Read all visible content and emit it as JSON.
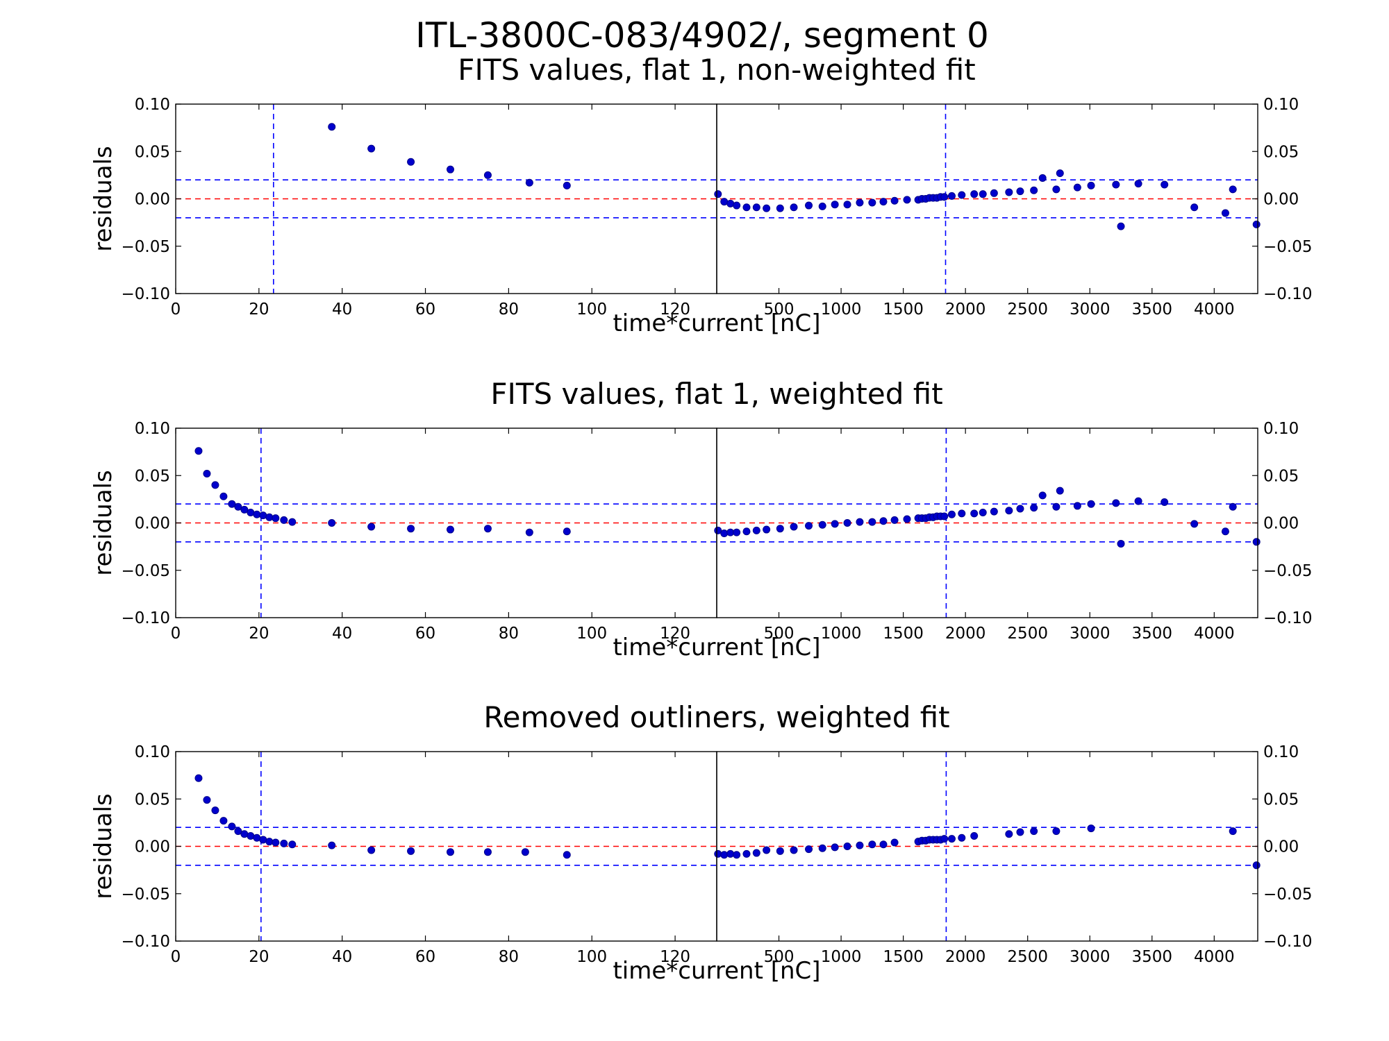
{
  "figure": {
    "title": "ITL-3800C-083/4902/, segment 0"
  },
  "colors": {
    "points": "#0000cc",
    "point_edge": "#00008b",
    "zero_line": "#ff0000",
    "threshold_lines": "#0000ff",
    "axes": "#000000"
  },
  "chart_data": [
    {
      "type": "scatter",
      "title": "FITS values, flat 1, non-weighted fit",
      "xlabel": "time*current [nC]",
      "ylabel": "residuals",
      "ylim": [
        -0.1,
        0.1
      ],
      "yticks": [
        "0.10",
        "0.05",
        "0.00",
        "−0.05",
        "−0.10"
      ],
      "y_values": [
        0.1,
        0.05,
        0.0,
        -0.05,
        -0.1
      ],
      "hlines": {
        "zero": 0.0,
        "thresholds": [
          0.02,
          -0.02
        ]
      },
      "left": {
        "xlim": [
          0,
          130
        ],
        "xticks": [
          0,
          20,
          40,
          60,
          80,
          100,
          120
        ],
        "vline": 23.5,
        "points": [
          [
            37.5,
            0.076
          ],
          [
            47,
            0.053
          ],
          [
            56.5,
            0.039
          ],
          [
            66,
            0.031
          ],
          [
            75,
            0.025
          ],
          [
            85,
            0.017
          ],
          [
            94,
            0.014
          ]
        ]
      },
      "right": {
        "xlim": [
          0,
          4350
        ],
        "xticks": [
          500,
          1000,
          1500,
          2000,
          2500,
          3000,
          3500,
          4000
        ],
        "vline": 1840,
        "points": [
          [
            10,
            0.005
          ],
          [
            60,
            -0.003
          ],
          [
            110,
            -0.005
          ],
          [
            160,
            -0.007
          ],
          [
            240,
            -0.009
          ],
          [
            320,
            -0.009
          ],
          [
            400,
            -0.01
          ],
          [
            510,
            -0.01
          ],
          [
            620,
            -0.009
          ],
          [
            740,
            -0.007
          ],
          [
            850,
            -0.008
          ],
          [
            950,
            -0.006
          ],
          [
            1050,
            -0.006
          ],
          [
            1150,
            -0.004
          ],
          [
            1250,
            -0.004
          ],
          [
            1340,
            -0.003
          ],
          [
            1430,
            -0.002
          ],
          [
            1530,
            -0.001
          ],
          [
            1620,
            -0.001
          ],
          [
            1650,
            0.0
          ],
          [
            1680,
            0.0
          ],
          [
            1710,
            0.001
          ],
          [
            1740,
            0.001
          ],
          [
            1770,
            0.001
          ],
          [
            1800,
            0.002
          ],
          [
            1830,
            0.002
          ],
          [
            1890,
            0.003
          ],
          [
            1970,
            0.004
          ],
          [
            2070,
            0.005
          ],
          [
            2140,
            0.005
          ],
          [
            2230,
            0.006
          ],
          [
            2350,
            0.007
          ],
          [
            2440,
            0.008
          ],
          [
            2550,
            0.009
          ],
          [
            2620,
            0.022
          ],
          [
            2730,
            0.01
          ],
          [
            2760,
            0.027
          ],
          [
            2900,
            0.012
          ],
          [
            3010,
            0.014
          ],
          [
            3210,
            0.015
          ],
          [
            3250,
            -0.029
          ],
          [
            3390,
            0.016
          ],
          [
            3600,
            0.015
          ],
          [
            3840,
            -0.009
          ],
          [
            4090,
            -0.015
          ],
          [
            4150,
            0.01
          ],
          [
            4340,
            -0.027
          ]
        ]
      }
    },
    {
      "type": "scatter",
      "title": "FITS values, flat 1, weighted fit",
      "xlabel": "time*current [nC]",
      "ylabel": "residuals",
      "ylim": [
        -0.1,
        0.1
      ],
      "yticks": [
        "0.10",
        "0.05",
        "0.00",
        "−0.05",
        "−0.10"
      ],
      "y_values": [
        0.1,
        0.05,
        0.0,
        -0.05,
        -0.1
      ],
      "hlines": {
        "zero": 0.0,
        "thresholds": [
          0.02,
          -0.02
        ]
      },
      "left": {
        "xlim": [
          0,
          130
        ],
        "xticks": [
          0,
          20,
          40,
          60,
          80,
          100,
          120
        ],
        "vline": 20.5,
        "points": [
          [
            5.5,
            0.076
          ],
          [
            7.5,
            0.052
          ],
          [
            9.5,
            0.04
          ],
          [
            11.5,
            0.028
          ],
          [
            13.5,
            0.02
          ],
          [
            15,
            0.017
          ],
          [
            16.5,
            0.014
          ],
          [
            18,
            0.011
          ],
          [
            19.5,
            0.009
          ],
          [
            21,
            0.008
          ],
          [
            22.5,
            0.006
          ],
          [
            24,
            0.005
          ],
          [
            26,
            0.003
          ],
          [
            28,
            0.001
          ],
          [
            37.5,
            0.0
          ],
          [
            47,
            -0.004
          ],
          [
            56.5,
            -0.006
          ],
          [
            66,
            -0.007
          ],
          [
            75,
            -0.006
          ],
          [
            85,
            -0.01
          ],
          [
            94,
            -0.009
          ]
        ]
      },
      "right": {
        "xlim": [
          0,
          4350
        ],
        "xticks": [
          500,
          1000,
          1500,
          2000,
          2500,
          3000,
          3500,
          4000
        ],
        "vline": 1845,
        "points": [
          [
            10,
            -0.008
          ],
          [
            60,
            -0.011
          ],
          [
            110,
            -0.01
          ],
          [
            160,
            -0.01
          ],
          [
            240,
            -0.009
          ],
          [
            320,
            -0.008
          ],
          [
            400,
            -0.007
          ],
          [
            510,
            -0.006
          ],
          [
            620,
            -0.004
          ],
          [
            740,
            -0.003
          ],
          [
            850,
            -0.002
          ],
          [
            950,
            -0.001
          ],
          [
            1050,
            0.0
          ],
          [
            1150,
            0.001
          ],
          [
            1250,
            0.001
          ],
          [
            1340,
            0.002
          ],
          [
            1430,
            0.003
          ],
          [
            1530,
            0.004
          ],
          [
            1620,
            0.005
          ],
          [
            1650,
            0.005
          ],
          [
            1680,
            0.005
          ],
          [
            1710,
            0.006
          ],
          [
            1740,
            0.006
          ],
          [
            1770,
            0.007
          ],
          [
            1800,
            0.007
          ],
          [
            1830,
            0.007
          ],
          [
            1890,
            0.009
          ],
          [
            1970,
            0.01
          ],
          [
            2070,
            0.01
          ],
          [
            2140,
            0.011
          ],
          [
            2230,
            0.012
          ],
          [
            2350,
            0.013
          ],
          [
            2440,
            0.015
          ],
          [
            2550,
            0.016
          ],
          [
            2620,
            0.029
          ],
          [
            2730,
            0.017
          ],
          [
            2760,
            0.034
          ],
          [
            2900,
            0.018
          ],
          [
            3010,
            0.02
          ],
          [
            3210,
            0.021
          ],
          [
            3250,
            -0.022
          ],
          [
            3390,
            0.023
          ],
          [
            3600,
            0.022
          ],
          [
            3840,
            -0.001
          ],
          [
            4090,
            -0.009
          ],
          [
            4150,
            0.017
          ],
          [
            4340,
            -0.02
          ]
        ]
      }
    },
    {
      "type": "scatter",
      "title": "Removed outliners, weighted fit",
      "xlabel": "time*current [nC]",
      "ylabel": "residuals",
      "ylim": [
        -0.1,
        0.1
      ],
      "yticks": [
        "0.10",
        "0.05",
        "0.00",
        "−0.05",
        "−0.10"
      ],
      "y_values": [
        0.1,
        0.05,
        0.0,
        -0.05,
        -0.1
      ],
      "hlines": {
        "zero": 0.0,
        "thresholds": [
          0.02,
          -0.02
        ]
      },
      "left": {
        "xlim": [
          0,
          130
        ],
        "xticks": [
          0,
          20,
          40,
          60,
          80,
          100,
          120
        ],
        "vline": 20.5,
        "points": [
          [
            5.5,
            0.072
          ],
          [
            7.5,
            0.049
          ],
          [
            9.5,
            0.038
          ],
          [
            11.5,
            0.027
          ],
          [
            13.5,
            0.021
          ],
          [
            15,
            0.016
          ],
          [
            16.5,
            0.013
          ],
          [
            18,
            0.011
          ],
          [
            19.5,
            0.009
          ],
          [
            21,
            0.007
          ],
          [
            22.5,
            0.005
          ],
          [
            24,
            0.004
          ],
          [
            26,
            0.003
          ],
          [
            28,
            0.002
          ],
          [
            37.5,
            0.001
          ],
          [
            47,
            -0.004
          ],
          [
            56.5,
            -0.005
          ],
          [
            66,
            -0.006
          ],
          [
            75,
            -0.006
          ],
          [
            84,
            -0.006
          ],
          [
            94,
            -0.009
          ]
        ]
      },
      "right": {
        "xlim": [
          0,
          4350
        ],
        "xticks": [
          500,
          1000,
          1500,
          2000,
          2500,
          3000,
          3500,
          4000
        ],
        "vline": 1845,
        "points": [
          [
            10,
            -0.008
          ],
          [
            60,
            -0.009
          ],
          [
            110,
            -0.008
          ],
          [
            160,
            -0.009
          ],
          [
            240,
            -0.008
          ],
          [
            320,
            -0.007
          ],
          [
            400,
            -0.004
          ],
          [
            510,
            -0.005
          ],
          [
            620,
            -0.004
          ],
          [
            740,
            -0.003
          ],
          [
            850,
            -0.002
          ],
          [
            950,
            -0.001
          ],
          [
            1050,
            0.0
          ],
          [
            1150,
            0.001
          ],
          [
            1250,
            0.002
          ],
          [
            1340,
            0.002
          ],
          [
            1430,
            0.004
          ],
          [
            1620,
            0.005
          ],
          [
            1650,
            0.006
          ],
          [
            1680,
            0.006
          ],
          [
            1710,
            0.007
          ],
          [
            1740,
            0.007
          ],
          [
            1770,
            0.007
          ],
          [
            1800,
            0.007
          ],
          [
            1830,
            0.008
          ],
          [
            1890,
            0.008
          ],
          [
            1970,
            0.009
          ],
          [
            2070,
            0.011
          ],
          [
            2350,
            0.013
          ],
          [
            2440,
            0.015
          ],
          [
            2550,
            0.016
          ],
          [
            2730,
            0.016
          ],
          [
            3010,
            0.019
          ],
          [
            4150,
            0.016
          ],
          [
            4340,
            -0.02
          ]
        ]
      }
    }
  ]
}
